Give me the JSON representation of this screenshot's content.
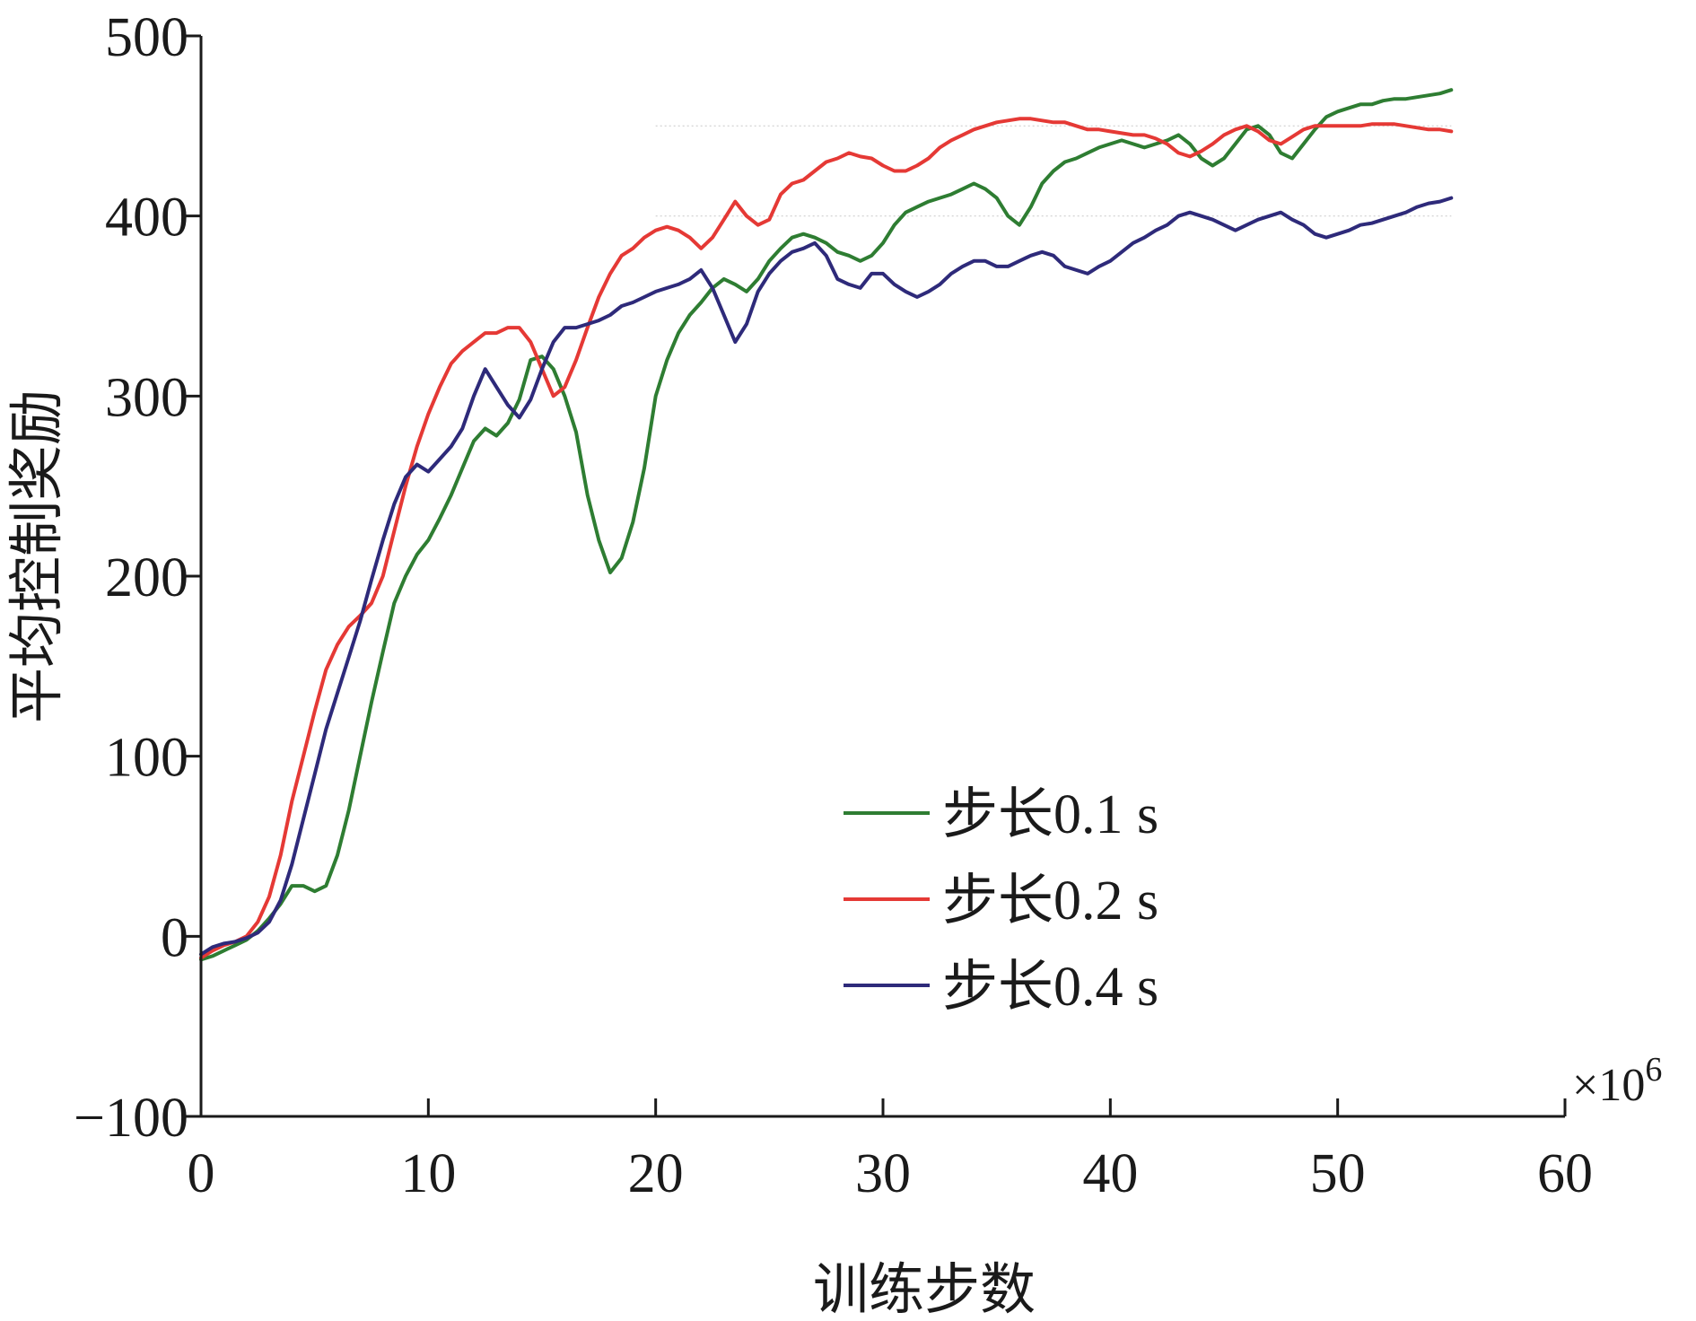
{
  "chart_data": {
    "type": "line",
    "title": "",
    "xlabel": "训练步数",
    "ylabel": "平均控制奖励",
    "x_multiplier_label": "×10",
    "x_multiplier_exponent": "6",
    "xlim": [
      0,
      60
    ],
    "ylim": [
      -100,
      500
    ],
    "x_ticks": [
      {
        "value": 0,
        "label": "0"
      },
      {
        "value": 10,
        "label": "10"
      },
      {
        "value": 20,
        "label": "20"
      },
      {
        "value": 30,
        "label": "30"
      },
      {
        "value": 40,
        "label": "40"
      },
      {
        "value": 50,
        "label": "50"
      },
      {
        "value": 60,
        "label": "60"
      }
    ],
    "y_ticks": [
      {
        "value": -100,
        "label": "−100"
      },
      {
        "value": 0,
        "label": "0"
      },
      {
        "value": 100,
        "label": "100"
      },
      {
        "value": 200,
        "label": "200"
      },
      {
        "value": 300,
        "label": "300"
      },
      {
        "value": 400,
        "label": "400"
      },
      {
        "value": 500,
        "label": "500"
      }
    ],
    "grid": false,
    "legend_position": "lower-right",
    "series": [
      {
        "name": "步长0.1 s",
        "color": "#2e7d32",
        "x": [
          0,
          0.5,
          1,
          1.5,
          2,
          2.5,
          3,
          3.5,
          4,
          4.5,
          5,
          5.5,
          6,
          6.5,
          7,
          7.5,
          8,
          8.5,
          9,
          9.5,
          10,
          10.5,
          11,
          11.5,
          12,
          12.5,
          13,
          13.5,
          14,
          14.5,
          15,
          15.5,
          16,
          16.5,
          17,
          17.5,
          18,
          18.5,
          19,
          19.5,
          20,
          20.5,
          21,
          21.5,
          22,
          22.5,
          23,
          23.5,
          24,
          24.5,
          25,
          25.5,
          26,
          26.5,
          27,
          27.5,
          28,
          28.5,
          29,
          29.5,
          30,
          30.5,
          31,
          31.5,
          32,
          32.5,
          33,
          33.5,
          34,
          34.5,
          35,
          35.5,
          36,
          36.5,
          37,
          37.5,
          38,
          38.5,
          39,
          39.5,
          40,
          40.5,
          41,
          41.5,
          42,
          42.5,
          43,
          43.5,
          44,
          44.5,
          45,
          45.5,
          46,
          46.5,
          47,
          47.5,
          48,
          48.5,
          49,
          49.5,
          50,
          50.5,
          51,
          51.5,
          52,
          52.5,
          53,
          53.5,
          54,
          54.5,
          55
        ],
        "y": [
          -13,
          -11,
          -8,
          -5,
          -2,
          3,
          10,
          18,
          28,
          28,
          25,
          28,
          45,
          70,
          100,
          130,
          158,
          185,
          200,
          212,
          220,
          232,
          245,
          260,
          275,
          282,
          278,
          285,
          298,
          320,
          322,
          315,
          300,
          280,
          245,
          220,
          202,
          210,
          230,
          260,
          300,
          320,
          335,
          345,
          352,
          360,
          365,
          362,
          358,
          365,
          375,
          382,
          388,
          390,
          388,
          385,
          380,
          378,
          375,
          378,
          385,
          395,
          402,
          405,
          408,
          410,
          412,
          415,
          418,
          415,
          410,
          400,
          395,
          405,
          418,
          425,
          430,
          432,
          435,
          438,
          440,
          442,
          440,
          438,
          440,
          442,
          445,
          440,
          432,
          428,
          432,
          440,
          448,
          450,
          445,
          435,
          432,
          440,
          448,
          455,
          458,
          460,
          462,
          462,
          464,
          465,
          465,
          466,
          467,
          468,
          470
        ]
      },
      {
        "name": "步长0.2 s",
        "color": "#e53935",
        "x": [
          0,
          0.5,
          1,
          1.5,
          2,
          2.5,
          3,
          3.5,
          4,
          4.5,
          5,
          5.5,
          6,
          6.5,
          7,
          7.5,
          8,
          8.5,
          9,
          9.5,
          10,
          10.5,
          11,
          11.5,
          12,
          12.5,
          13,
          13.5,
          14,
          14.5,
          15,
          15.5,
          16,
          16.5,
          17,
          17.5,
          18,
          18.5,
          19,
          19.5,
          20,
          20.5,
          21,
          21.5,
          22,
          22.5,
          23,
          23.5,
          24,
          24.5,
          25,
          25.5,
          26,
          26.5,
          27,
          27.5,
          28,
          28.5,
          29,
          29.5,
          30,
          30.5,
          31,
          31.5,
          32,
          32.5,
          33,
          33.5,
          34,
          34.5,
          35,
          35.5,
          36,
          36.5,
          37,
          37.5,
          38,
          38.5,
          39,
          39.5,
          40,
          40.5,
          41,
          41.5,
          42,
          42.5,
          43,
          43.5,
          44,
          44.5,
          45,
          45.5,
          46,
          46.5,
          47,
          47.5,
          48,
          48.5,
          49,
          49.5,
          50,
          50.5,
          51,
          51.5,
          52,
          52.5,
          53,
          53.5,
          54,
          54.5,
          55
        ],
        "y": [
          -12,
          -8,
          -5,
          -3,
          0,
          8,
          22,
          45,
          75,
          100,
          125,
          148,
          162,
          172,
          178,
          185,
          200,
          225,
          250,
          272,
          290,
          305,
          318,
          325,
          330,
          335,
          335,
          338,
          338,
          330,
          315,
          300,
          305,
          320,
          338,
          355,
          368,
          378,
          382,
          388,
          392,
          394,
          392,
          388,
          382,
          388,
          398,
          408,
          400,
          395,
          398,
          412,
          418,
          420,
          425,
          430,
          432,
          435,
          433,
          432,
          428,
          425,
          425,
          428,
          432,
          438,
          442,
          445,
          448,
          450,
          452,
          453,
          454,
          454,
          453,
          452,
          452,
          450,
          448,
          448,
          447,
          446,
          445,
          445,
          443,
          440,
          435,
          433,
          436,
          440,
          445,
          448,
          450,
          447,
          442,
          440,
          444,
          448,
          450,
          450,
          450,
          450,
          450,
          451,
          451,
          451,
          450,
          449,
          448,
          448,
          447
        ]
      },
      {
        "name": "步长0.4 s",
        "color": "#2e2a7a",
        "x": [
          0,
          0.5,
          1,
          1.5,
          2,
          2.5,
          3,
          3.5,
          4,
          4.5,
          5,
          5.5,
          6,
          6.5,
          7,
          7.5,
          8,
          8.5,
          9,
          9.5,
          10,
          10.5,
          11,
          11.5,
          12,
          12.5,
          13,
          13.5,
          14,
          14.5,
          15,
          15.5,
          16,
          16.5,
          17,
          17.5,
          18,
          18.5,
          19,
          19.5,
          20,
          20.5,
          21,
          21.5,
          22,
          22.5,
          23,
          23.5,
          24,
          24.5,
          25,
          25.5,
          26,
          26.5,
          27,
          27.5,
          28,
          28.5,
          29,
          29.5,
          30,
          30.5,
          31,
          31.5,
          32,
          32.5,
          33,
          33.5,
          34,
          34.5,
          35,
          35.5,
          36,
          36.5,
          37,
          37.5,
          38,
          38.5,
          39,
          39.5,
          40,
          40.5,
          41,
          41.5,
          42,
          42.5,
          43,
          43.5,
          44,
          44.5,
          45,
          45.5,
          46,
          46.5,
          47,
          47.5,
          48,
          48.5,
          49,
          49.5,
          50,
          50.5,
          51,
          51.5,
          52,
          52.5,
          53,
          53.5,
          54,
          54.5,
          55
        ],
        "y": [
          -10,
          -6,
          -4,
          -3,
          -1,
          2,
          8,
          20,
          40,
          65,
          90,
          115,
          135,
          155,
          175,
          198,
          220,
          240,
          255,
          262,
          258,
          265,
          272,
          282,
          300,
          315,
          305,
          295,
          288,
          298,
          315,
          330,
          338,
          338,
          340,
          342,
          345,
          350,
          352,
          355,
          358,
          360,
          362,
          365,
          370,
          360,
          345,
          330,
          340,
          358,
          368,
          375,
          380,
          382,
          385,
          378,
          365,
          362,
          360,
          368,
          368,
          362,
          358,
          355,
          358,
          362,
          368,
          372,
          375,
          375,
          372,
          372,
          375,
          378,
          380,
          378,
          372,
          370,
          368,
          372,
          375,
          380,
          385,
          388,
          392,
          395,
          400,
          402,
          400,
          398,
          395,
          392,
          395,
          398,
          400,
          402,
          398,
          395,
          390,
          388,
          390,
          392,
          395,
          396,
          398,
          400,
          402,
          405,
          407,
          408,
          410
        ]
      }
    ]
  }
}
